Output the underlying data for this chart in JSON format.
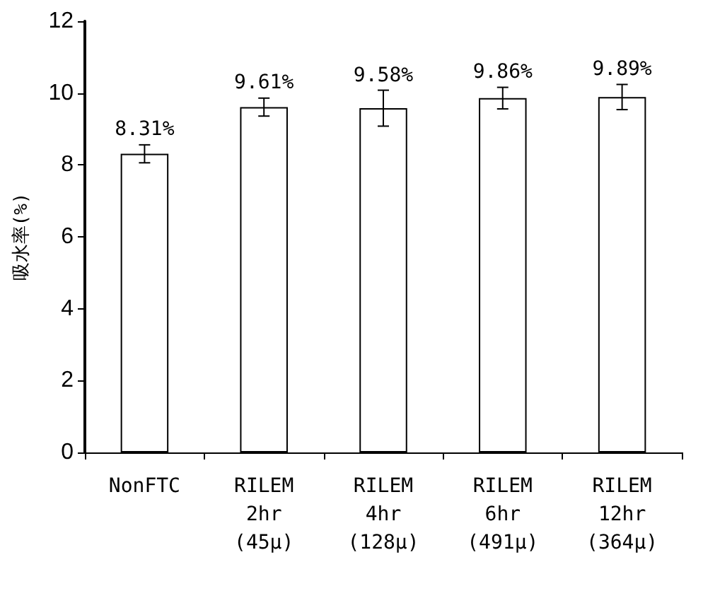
{
  "chart_data": {
    "type": "bar",
    "ylabel": "吸水率(%)",
    "categories": [
      "NonFTC",
      "RILEM\n2hr\n(45μ)",
      "RILEM\n4hr\n(128μ)",
      "RILEM\n6hr\n(491μ)",
      "RILEM\n12hr\n(364μ)"
    ],
    "values": [
      8.31,
      9.61,
      9.58,
      9.86,
      9.89
    ],
    "errors": [
      0.25,
      0.25,
      0.5,
      0.3,
      0.35
    ],
    "value_labels": [
      "8.31%",
      "9.61%",
      "9.58%",
      "9.86%",
      "9.89%"
    ],
    "color": "#ffffff",
    "ylim": [
      0,
      12
    ],
    "yticks": [
      0,
      2,
      4,
      6,
      8,
      10,
      12
    ],
    "grid": false
  }
}
